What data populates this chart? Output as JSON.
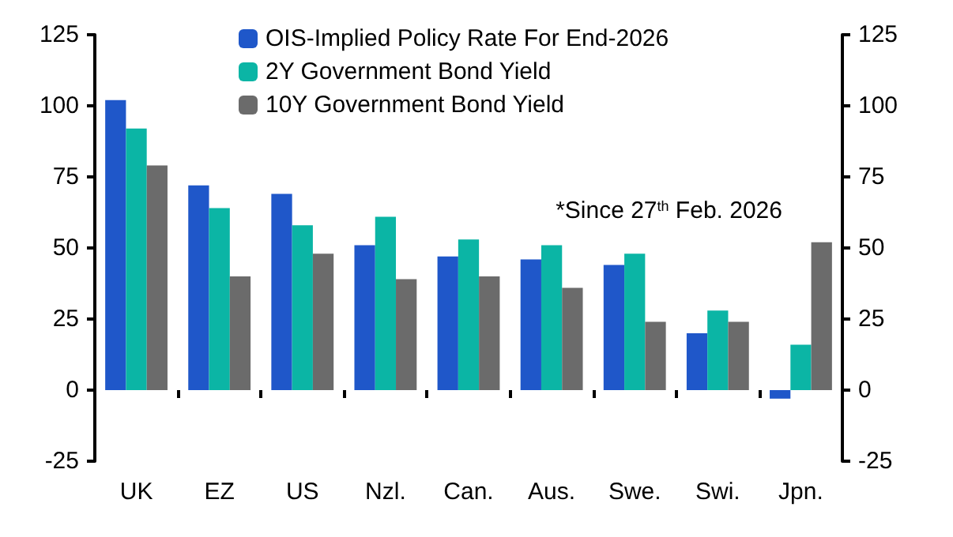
{
  "chart_data": {
    "type": "bar",
    "categories": [
      "UK",
      "EZ",
      "US",
      "Nzl.",
      "Can.",
      "Aus.",
      "Swe.",
      "Swi.",
      "Jpn."
    ],
    "series": [
      {
        "name": "OIS-Implied Policy Rate For End-2026",
        "color": "#1f57c9",
        "values": [
          102,
          72,
          69,
          51,
          47,
          46,
          44,
          20,
          -3
        ]
      },
      {
        "name": "2Y Government Bond Yield",
        "color": "#0bb5a5",
        "values": [
          92,
          64,
          58,
          61,
          53,
          51,
          48,
          28,
          16
        ]
      },
      {
        "name": "10Y Government Bond Yield",
        "color": "#6b6b6b",
        "values": [
          79,
          40,
          48,
          39,
          40,
          36,
          24,
          24,
          52
        ]
      }
    ],
    "ylim": [
      -25,
      125
    ],
    "yticks": [
      -25,
      0,
      25,
      50,
      75,
      100,
      125
    ],
    "y2lim": [
      -25,
      125
    ],
    "y2ticks": [
      -25,
      0,
      25,
      50,
      75,
      100,
      125
    ],
    "annotations": [
      "*Since 27$^{th}$ Feb. 2026"
    ],
    "grid": false,
    "legend": "top left"
  }
}
